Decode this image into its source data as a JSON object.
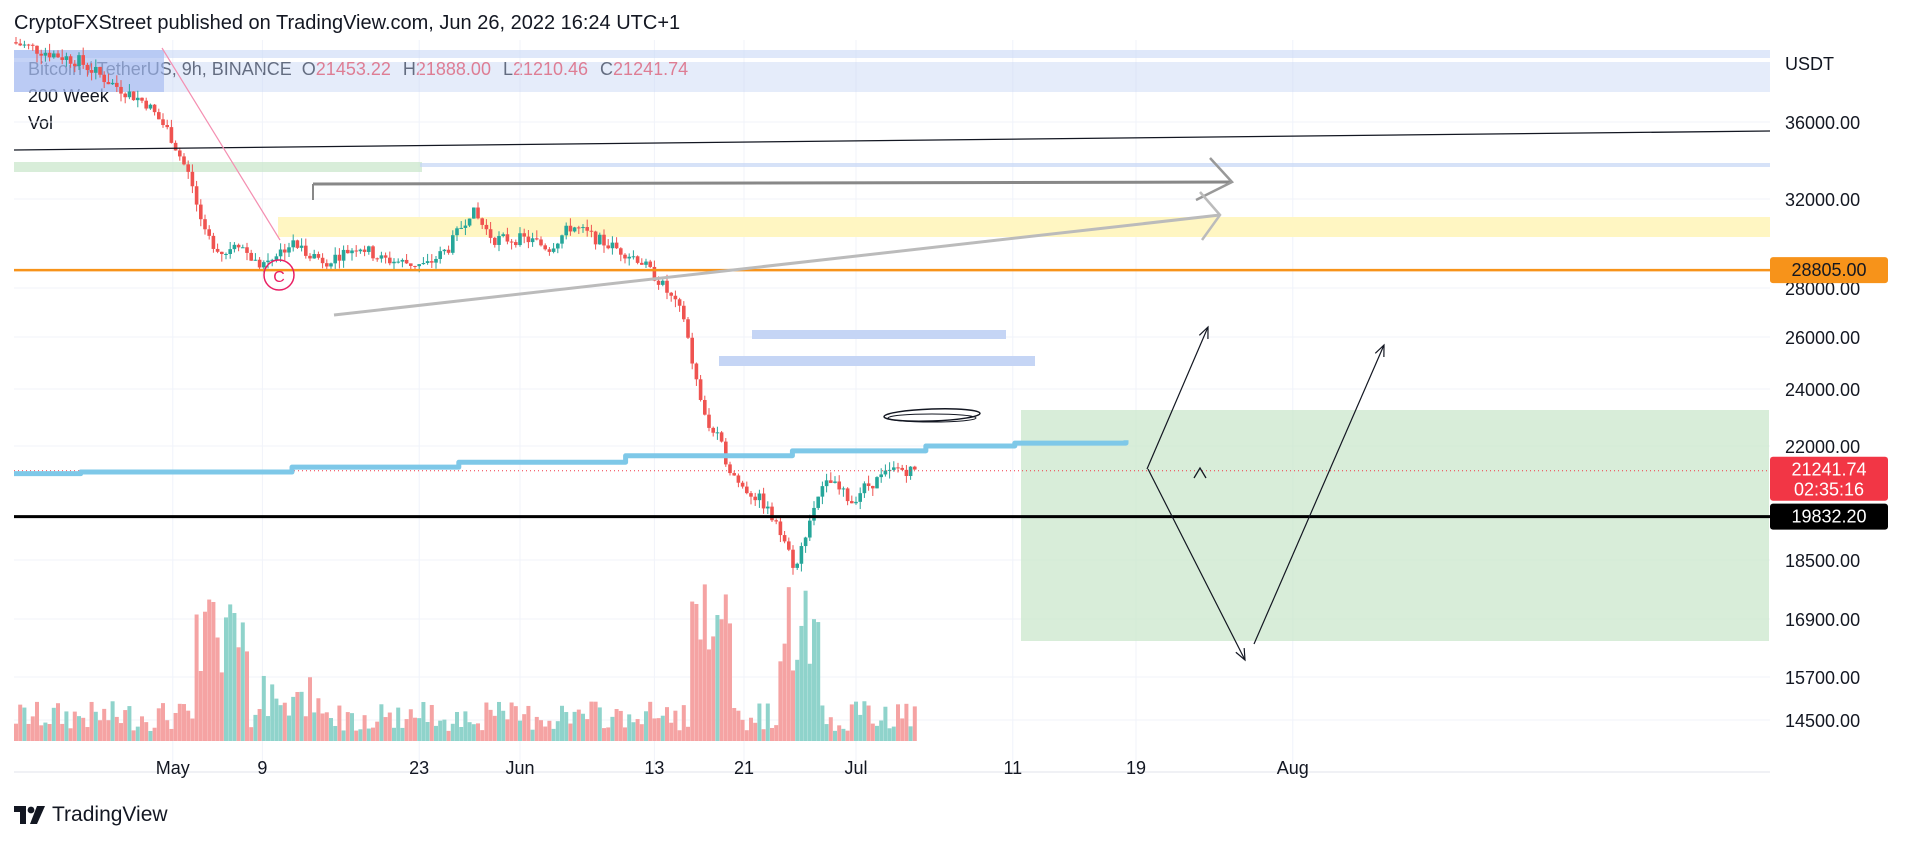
{
  "header": {
    "published": "CryptoFXStreet published on TradingView.com, Jun 26, 2022 16:24 UTC+1"
  },
  "brand": {
    "name": "TradingView"
  },
  "legend": {
    "symbol": "Bitcoin / TetherUS, 9h, BINANCE",
    "o_label": "O",
    "o": "21453.22",
    "h_label": "H",
    "h": "21888.00",
    "l_label": "L",
    "l": "21210.46",
    "c_label": "C",
    "c": "21241.74",
    "indicator": "200 Week",
    "volume": "Vol"
  },
  "colors": {
    "up": "#26a69a",
    "down": "#ef5350",
    "vol_up": "#8fd3cb",
    "vol_down": "#f5a3a3",
    "orange": "#f7931a",
    "ma": "#7ec8e8",
    "zone_green": "#c8e6c9",
    "zone_yellow": "#fff6c2",
    "zone_blue": "#c5d5f5"
  },
  "chart_data": {
    "type": "candlestick",
    "title": "",
    "y_axis_unit": "USDT",
    "y_ticks": [
      "36000.00",
      "32000.00",
      "28000.00",
      "26000.00",
      "24000.00",
      "22000.00",
      "18500.00",
      "16900.00",
      "15700.00",
      "14500.00"
    ],
    "x_ticks": [
      "May",
      "9",
      "23",
      "Jun",
      "13",
      "21",
      "Jul",
      "11",
      "19",
      "Aug"
    ],
    "price_labels": [
      {
        "value": "28805.00",
        "color": "#f7931a",
        "text_color": "#131722"
      },
      {
        "value": "21241.74",
        "sub": "02:35:16",
        "color": "#f23645",
        "text_color": "#ffffff"
      },
      {
        "value": "19832.20",
        "color": "#000000",
        "text_color": "#ffffff"
      }
    ],
    "horizontal_levels": [
      {
        "name": "orange-level",
        "price": 28805
      },
      {
        "name": "black-support",
        "price": 19832.2
      },
      {
        "name": "current-price",
        "price": 21241.74
      }
    ],
    "ma_200_week": [
      {
        "t": 0,
        "p": 21150
      },
      {
        "t": 0.06,
        "p": 21200
      },
      {
        "t": 0.25,
        "p": 21350
      },
      {
        "t": 0.4,
        "p": 21500
      },
      {
        "t": 0.55,
        "p": 21700
      },
      {
        "t": 0.7,
        "p": 21850
      },
      {
        "t": 0.82,
        "p": 22000
      },
      {
        "t": 0.9,
        "p": 22100
      },
      {
        "t": 1,
        "p": 22200
      }
    ],
    "series_path": [
      {
        "d": 0,
        "p": 40200
      },
      {
        "d": 6,
        "p": 39200
      },
      {
        "d": 9,
        "p": 38000
      },
      {
        "d": 12,
        "p": 37000
      },
      {
        "d": 14,
        "p": 35500
      },
      {
        "d": 16,
        "p": 33000
      },
      {
        "d": 17,
        "p": 30500
      },
      {
        "d": 19,
        "p": 29500
      },
      {
        "d": 20,
        "p": 30200
      },
      {
        "d": 22,
        "p": 29000
      },
      {
        "d": 25,
        "p": 30000
      },
      {
        "d": 28,
        "p": 29200
      },
      {
        "d": 31,
        "p": 29900
      },
      {
        "d": 33,
        "p": 29300
      },
      {
        "d": 37,
        "p": 29000
      },
      {
        "d": 39,
        "p": 29800
      },
      {
        "d": 41,
        "p": 31500
      },
      {
        "d": 43,
        "p": 30200
      },
      {
        "d": 46,
        "p": 30200
      },
      {
        "d": 48,
        "p": 29800
      },
      {
        "d": 50,
        "p": 30800
      },
      {
        "d": 53,
        "p": 30000
      },
      {
        "d": 56,
        "p": 29300
      },
      {
        "d": 58,
        "p": 28200
      },
      {
        "d": 60,
        "p": 26800
      },
      {
        "d": 61,
        "p": 24500
      },
      {
        "d": 62,
        "p": 22800
      },
      {
        "d": 63,
        "p": 22300
      },
      {
        "d": 64,
        "p": 21400
      },
      {
        "d": 65,
        "p": 20800
      },
      {
        "d": 67,
        "p": 20300
      },
      {
        "d": 69,
        "p": 19100
      },
      {
        "d": 70,
        "p": 18200
      },
      {
        "d": 71,
        "p": 19500
      },
      {
        "d": 72,
        "p": 20500
      },
      {
        "d": 73,
        "p": 20900
      },
      {
        "d": 75,
        "p": 20300
      },
      {
        "d": 76,
        "p": 20700
      },
      {
        "d": 78,
        "p": 21100
      },
      {
        "d": 79,
        "p": 21300
      },
      {
        "d": 80.5,
        "p": 21241.74
      }
    ],
    "volume_bars": 215
  }
}
